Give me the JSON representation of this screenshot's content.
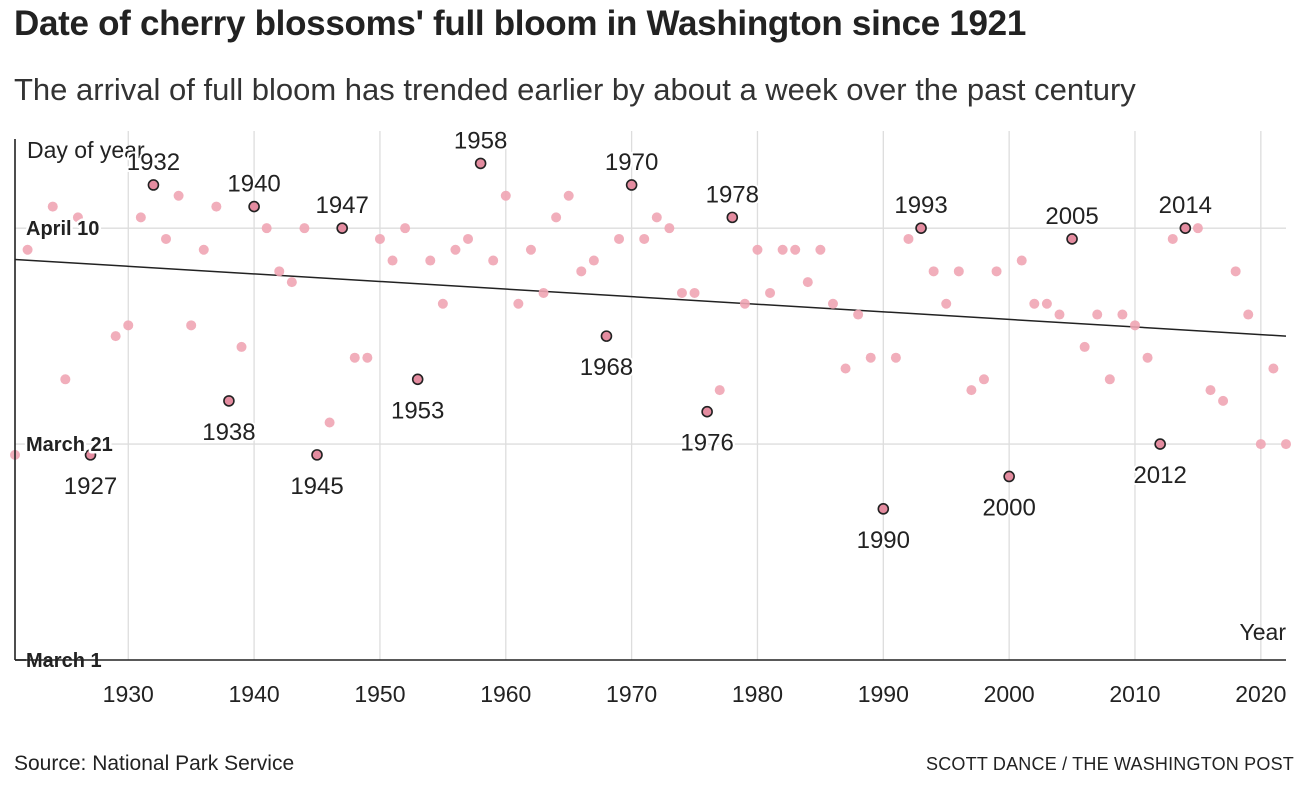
{
  "title": "Date of cherry blossoms' full bloom in Washington since 1921",
  "subtitle": "The arrival of full bloom has trended earlier by about a week over the past century",
  "footer": {
    "source": "Source: National Park Service",
    "credit": "SCOTT DANCE / THE WASHINGTON POST"
  },
  "colors": {
    "point": "#f0a5b4",
    "highlight": "#e48ca0",
    "highlight_stroke": "#222222",
    "trend": "#222222",
    "grid": "#dddddd",
    "axis": "#222222"
  },
  "chart_data": {
    "type": "scatter",
    "ylabel": "Day of year",
    "xlabel": "Year",
    "xlim": [
      1921,
      2022
    ],
    "ylim": [
      60,
      109
    ],
    "x_ticks": [
      1930,
      1940,
      1950,
      1960,
      1970,
      1980,
      1990,
      2000,
      2010,
      2020
    ],
    "y_ticks": [
      {
        "label": "March 1",
        "value": 60
      },
      {
        "label": "March 21",
        "value": 80
      },
      {
        "label": "April 10",
        "value": 100
      }
    ],
    "grid": true,
    "trend": {
      "from": [
        1921,
        97.1
      ],
      "to": [
        2022,
        90.0
      ]
    },
    "points": [
      [
        1921,
        79
      ],
      [
        1922,
        98
      ],
      [
        1924,
        102
      ],
      [
        1925,
        86
      ],
      [
        1926,
        101
      ],
      [
        1927,
        79
      ],
      [
        1929,
        90
      ],
      [
        1930,
        91
      ],
      [
        1931,
        101
      ],
      [
        1932,
        104
      ],
      [
        1933,
        99
      ],
      [
        1934,
        103
      ],
      [
        1935,
        91
      ],
      [
        1936,
        98
      ],
      [
        1937,
        102
      ],
      [
        1938,
        84
      ],
      [
        1939,
        89
      ],
      [
        1940,
        102
      ],
      [
        1941,
        100
      ],
      [
        1942,
        96
      ],
      [
        1943,
        95
      ],
      [
        1944,
        100
      ],
      [
        1945,
        79
      ],
      [
        1946,
        82
      ],
      [
        1947,
        100
      ],
      [
        1948,
        88
      ],
      [
        1949,
        88
      ],
      [
        1950,
        99
      ],
      [
        1951,
        97
      ],
      [
        1952,
        100
      ],
      [
        1953,
        86
      ],
      [
        1954,
        97
      ],
      [
        1955,
        93
      ],
      [
        1956,
        98
      ],
      [
        1957,
        99
      ],
      [
        1958,
        106
      ],
      [
        1959,
        97
      ],
      [
        1960,
        103
      ],
      [
        1961,
        93
      ],
      [
        1962,
        98
      ],
      [
        1963,
        94
      ],
      [
        1964,
        101
      ],
      [
        1965,
        103
      ],
      [
        1966,
        96
      ],
      [
        1967,
        97
      ],
      [
        1968,
        90
      ],
      [
        1969,
        99
      ],
      [
        1970,
        104
      ],
      [
        1971,
        99
      ],
      [
        1972,
        101
      ],
      [
        1973,
        100
      ],
      [
        1974,
        94
      ],
      [
        1975,
        94
      ],
      [
        1976,
        83
      ],
      [
        1977,
        85
      ],
      [
        1978,
        101
      ],
      [
        1979,
        93
      ],
      [
        1980,
        98
      ],
      [
        1981,
        94
      ],
      [
        1982,
        98
      ],
      [
        1983,
        98
      ],
      [
        1984,
        95
      ],
      [
        1985,
        98
      ],
      [
        1986,
        93
      ],
      [
        1987,
        87
      ],
      [
        1988,
        92
      ],
      [
        1989,
        88
      ],
      [
        1990,
        74
      ],
      [
        1991,
        88
      ],
      [
        1992,
        99
      ],
      [
        1993,
        100
      ],
      [
        1994,
        96
      ],
      [
        1995,
        93
      ],
      [
        1996,
        96
      ],
      [
        1997,
        85
      ],
      [
        1998,
        86
      ],
      [
        1999,
        96
      ],
      [
        2000,
        77
      ],
      [
        2001,
        97
      ],
      [
        2002,
        93
      ],
      [
        2003,
        93
      ],
      [
        2004,
        92
      ],
      [
        2005,
        99
      ],
      [
        2006,
        89
      ],
      [
        2007,
        92
      ],
      [
        2008,
        86
      ],
      [
        2009,
        92
      ],
      [
        2010,
        91
      ],
      [
        2011,
        88
      ],
      [
        2012,
        80
      ],
      [
        2013,
        99
      ],
      [
        2014,
        100
      ],
      [
        2015,
        100
      ],
      [
        2016,
        85
      ],
      [
        2017,
        84
      ],
      [
        2018,
        96
      ],
      [
        2019,
        92
      ],
      [
        2020,
        80
      ],
      [
        2021,
        87
      ],
      [
        2022,
        80
      ]
    ],
    "annotations": [
      {
        "year": 1927,
        "value": 79,
        "label": "1927",
        "position": "below"
      },
      {
        "year": 1932,
        "value": 104,
        "label": "1932",
        "position": "above"
      },
      {
        "year": 1938,
        "value": 84,
        "label": "1938",
        "position": "below"
      },
      {
        "year": 1940,
        "value": 102,
        "label": "1940",
        "position": "above"
      },
      {
        "year": 1945,
        "value": 79,
        "label": "1945",
        "position": "below"
      },
      {
        "year": 1947,
        "value": 100,
        "label": "1947",
        "position": "above"
      },
      {
        "year": 1953,
        "value": 86,
        "label": "1953",
        "position": "below"
      },
      {
        "year": 1958,
        "value": 106,
        "label": "1958",
        "position": "above"
      },
      {
        "year": 1968,
        "value": 90,
        "label": "1968",
        "position": "below"
      },
      {
        "year": 1970,
        "value": 104,
        "label": "1970",
        "position": "above"
      },
      {
        "year": 1976,
        "value": 83,
        "label": "1976",
        "position": "below"
      },
      {
        "year": 1978,
        "value": 101,
        "label": "1978",
        "position": "above"
      },
      {
        "year": 1990,
        "value": 74,
        "label": "1990",
        "position": "below"
      },
      {
        "year": 1993,
        "value": 100,
        "label": "1993",
        "position": "above"
      },
      {
        "year": 2000,
        "value": 77,
        "label": "2000",
        "position": "below"
      },
      {
        "year": 2005,
        "value": 99,
        "label": "2005",
        "position": "above"
      },
      {
        "year": 2012,
        "value": 80,
        "label": "2012",
        "position": "below"
      },
      {
        "year": 2014,
        "value": 100,
        "label": "2014",
        "position": "above"
      }
    ]
  }
}
